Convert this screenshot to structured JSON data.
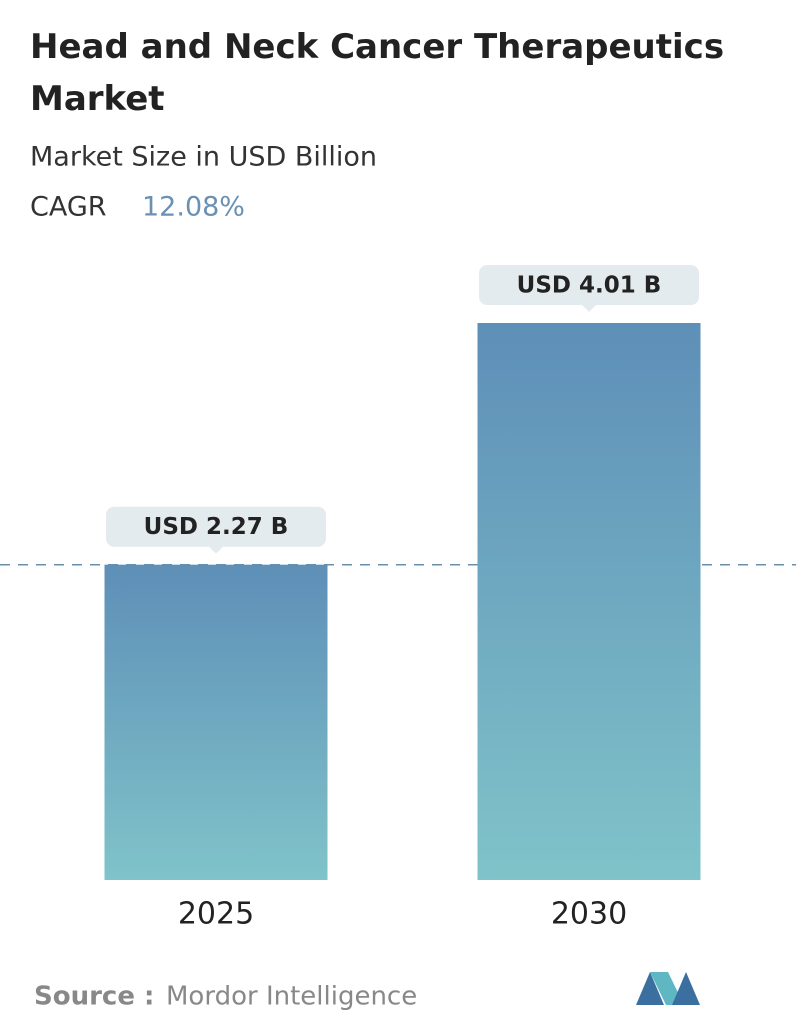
{
  "chart_data": {
    "type": "bar",
    "title": "Head and Neck Cancer Therapeutics Market",
    "subtitle": "Market Size in USD Billion",
    "cagr_label": "CAGR",
    "cagr_value": "12.08%",
    "categories": [
      "2025",
      "2030"
    ],
    "values": [
      2.27,
      4.01
    ],
    "value_labels": [
      "USD 2.27 B",
      "USD 4.01 B"
    ],
    "color_top": "#5e8fb8",
    "color_bottom": "#80c3c9",
    "source_label": "Source :",
    "source": "Mordor Intelligence"
  }
}
